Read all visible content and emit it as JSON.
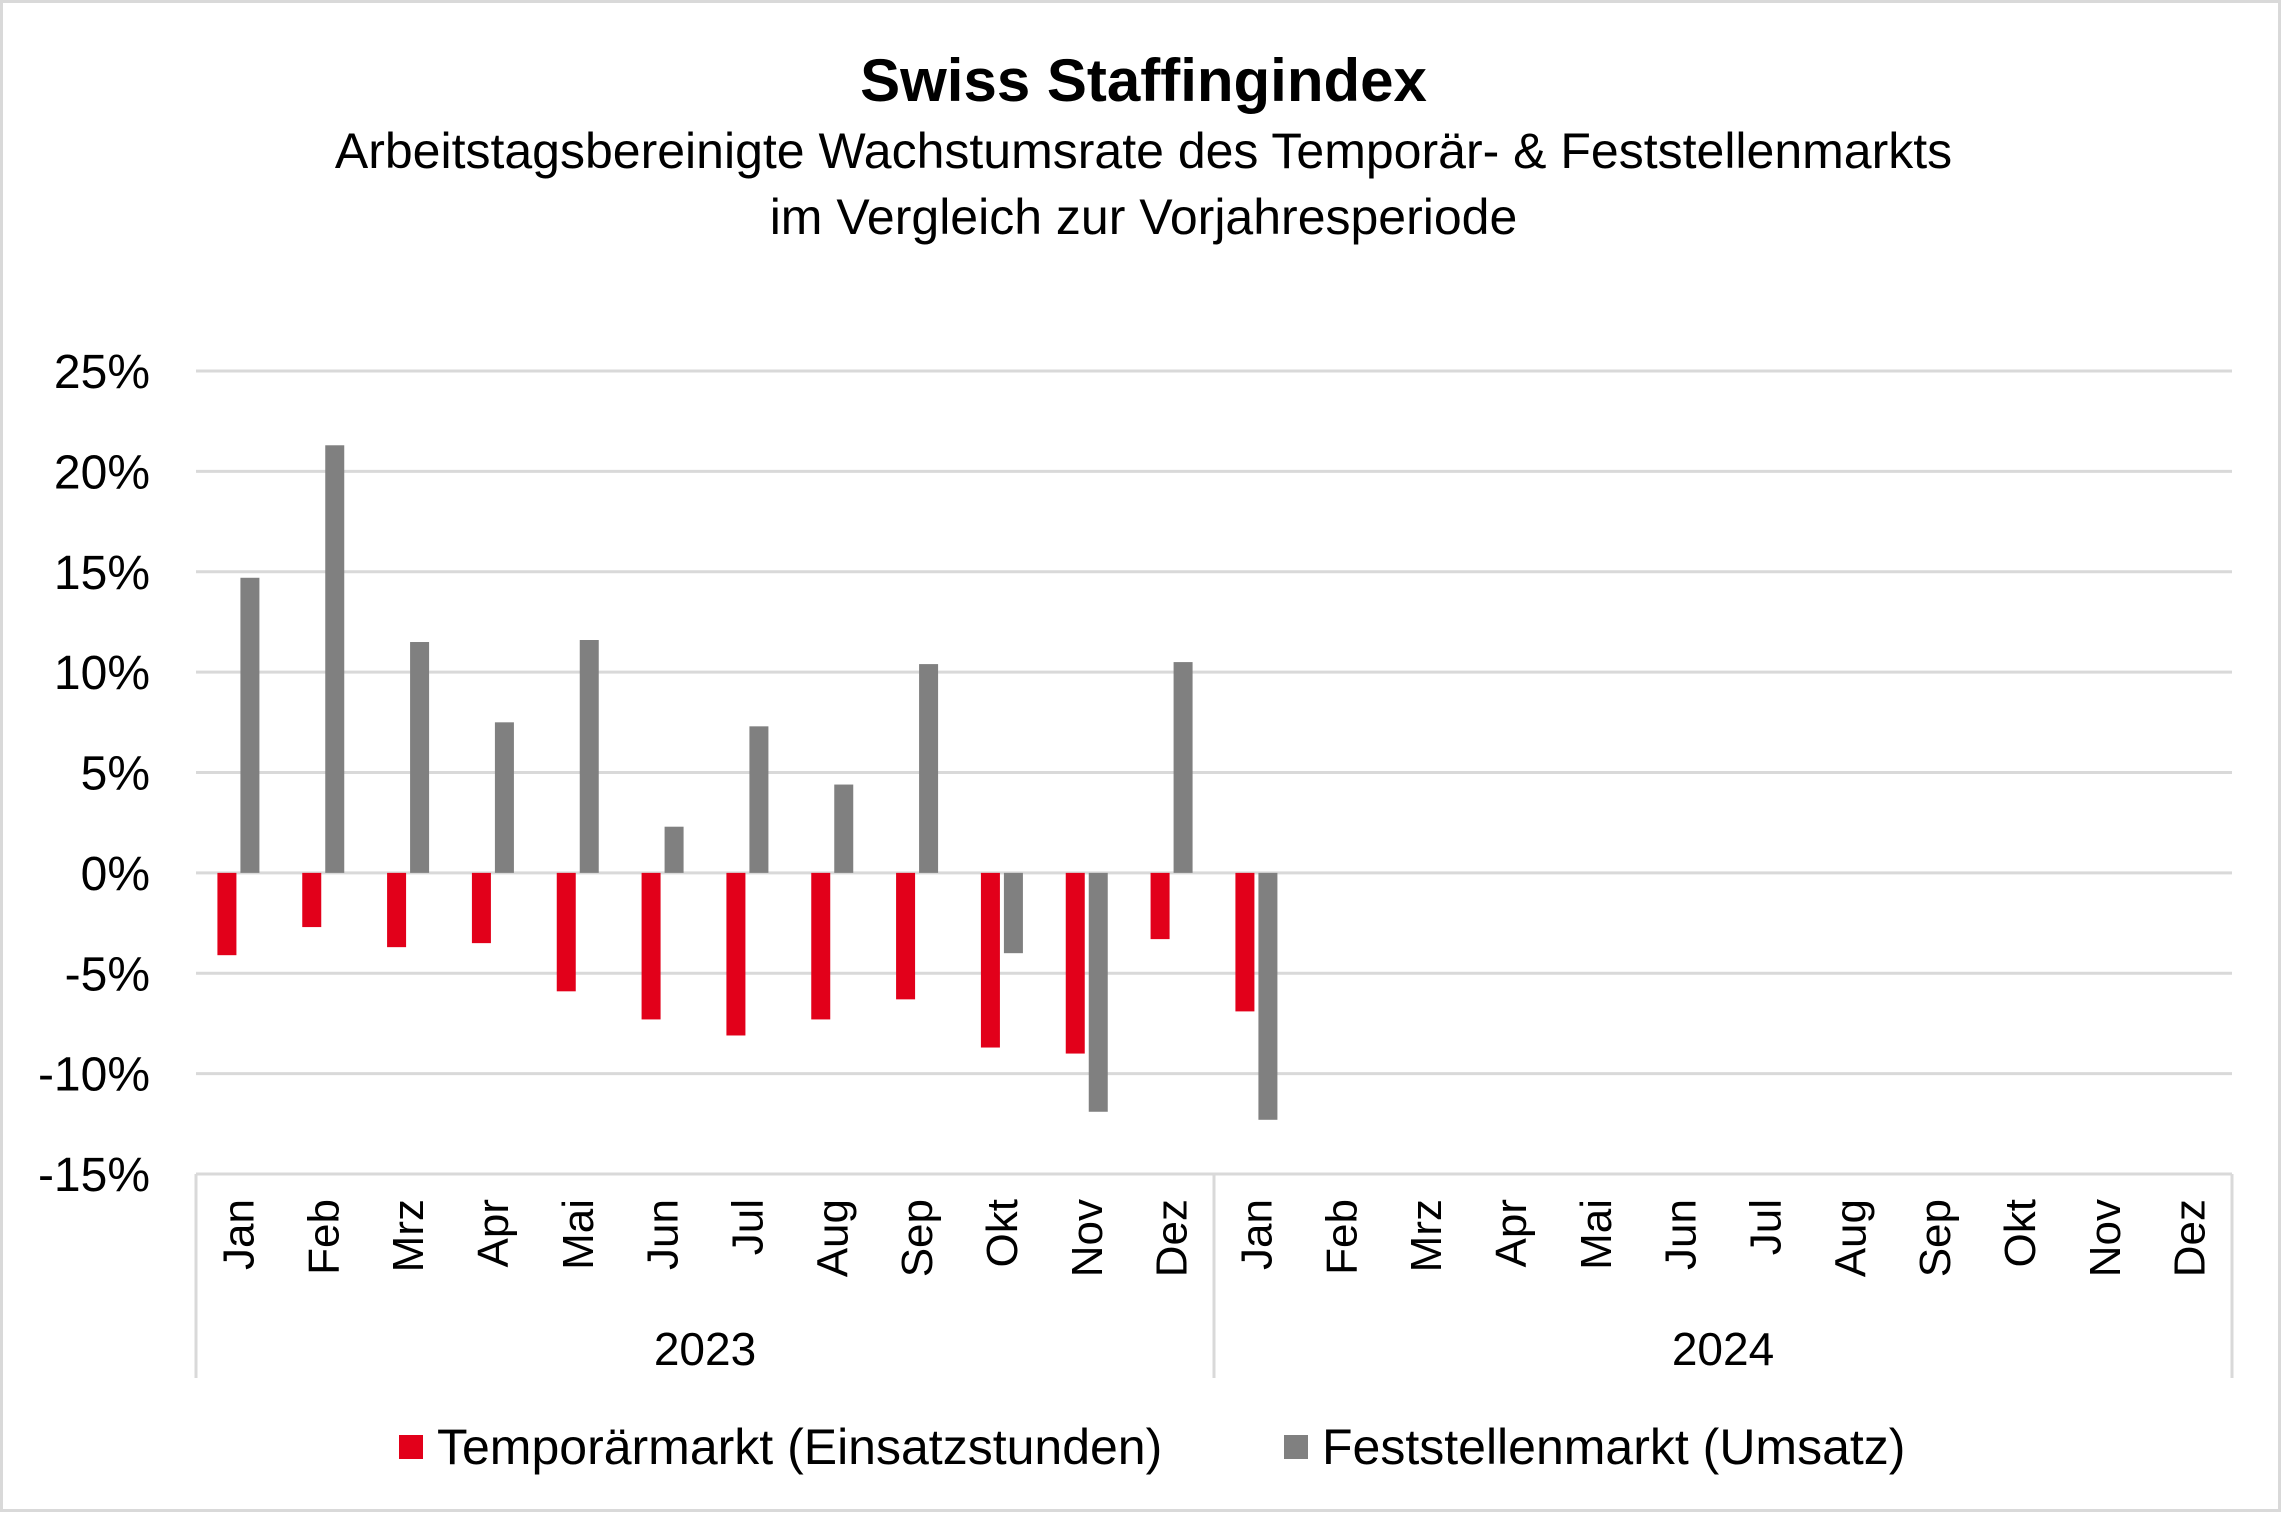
{
  "chart_data": {
    "type": "bar",
    "title": "Swiss Staffingindex",
    "subtitle_lines": [
      "Arbeitstagsbereinigte Wachstumsrate des Temporär- & Feststellenmarkts",
      "im Vergleich zur Vorjahresperiode"
    ],
    "xlabel": "",
    "ylabel": "",
    "ylim": [
      -15,
      25
    ],
    "y_ticks": [
      25,
      20,
      15,
      10,
      5,
      0,
      -5,
      -10,
      -15
    ],
    "y_tick_labels": [
      "25%",
      "20%",
      "15%",
      "10%",
      "5%",
      "0%",
      "-5%",
      "-10%",
      "-15%"
    ],
    "y_unit": "%",
    "grid": true,
    "legend_position": "bottom",
    "groups": [
      {
        "label": "2023",
        "categories": [
          "Jan",
          "Feb",
          "Mrz",
          "Apr",
          "Mai",
          "Jun",
          "Jul",
          "Aug",
          "Sep",
          "Okt",
          "Nov",
          "Dez"
        ]
      },
      {
        "label": "2024",
        "categories": [
          "Jan",
          "Feb",
          "Mrz",
          "Apr",
          "Mai",
          "Jun",
          "Jul",
          "Aug",
          "Sep",
          "Okt",
          "Nov",
          "Dez"
        ]
      }
    ],
    "series": [
      {
        "name": "Temporärmarkt (Einsatzstunden)",
        "color": "#E2001A",
        "values": [
          -4.1,
          -2.7,
          -3.7,
          -3.5,
          -5.9,
          -7.3,
          -8.1,
          -7.3,
          -6.3,
          -8.7,
          -9.0,
          -3.3,
          -6.9,
          null,
          null,
          null,
          null,
          null,
          null,
          null,
          null,
          null,
          null,
          null
        ]
      },
      {
        "name": "Feststellenmarkt (Umsatz)",
        "color": "#808080",
        "values": [
          14.7,
          21.3,
          11.5,
          7.5,
          11.6,
          2.3,
          7.3,
          4.4,
          10.4,
          -4.0,
          -11.9,
          10.5,
          -12.3,
          null,
          null,
          null,
          null,
          null,
          null,
          null,
          null,
          null,
          null,
          null
        ]
      }
    ]
  },
  "colors": {
    "gridline": "#d9d9d9",
    "axis": "#d9d9d9",
    "text": "#000000"
  }
}
